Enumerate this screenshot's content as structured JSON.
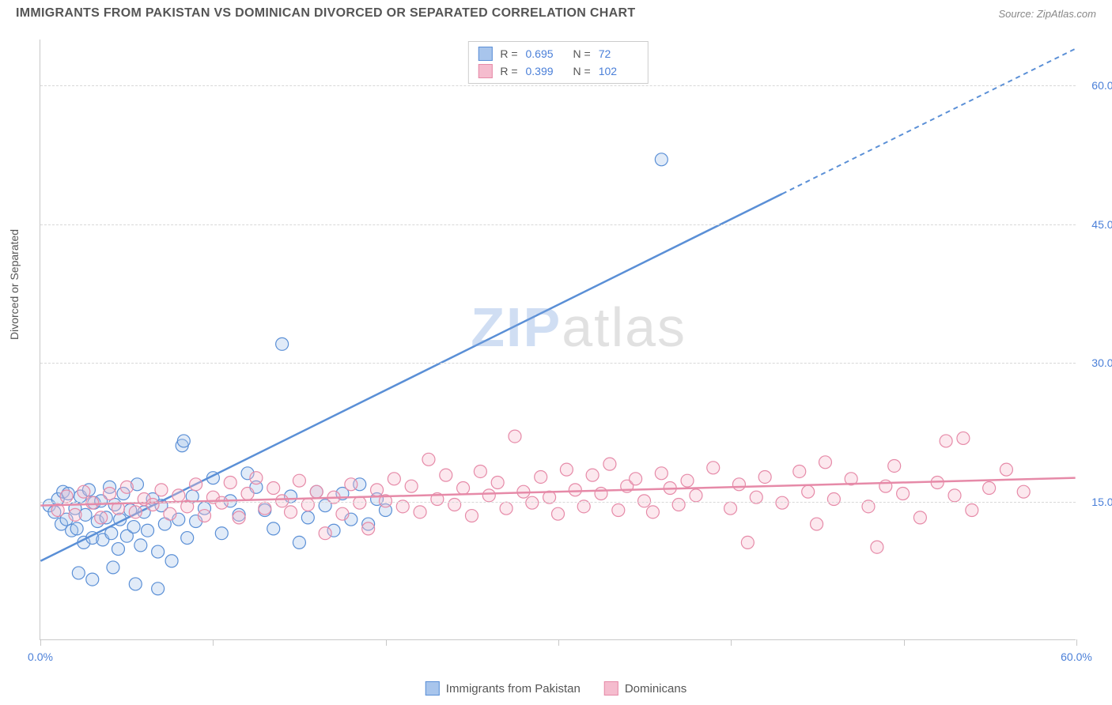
{
  "header": {
    "title": "IMMIGRANTS FROM PAKISTAN VS DOMINICAN DIVORCED OR SEPARATED CORRELATION CHART",
    "source_prefix": "Source: ",
    "source_name": "ZipAtlas.com"
  },
  "watermark": {
    "zip": "ZIP",
    "atlas": "atlas"
  },
  "chart": {
    "type": "scatter",
    "y_axis_label": "Divorced or Separated",
    "xlim": [
      0,
      60
    ],
    "ylim": [
      0,
      65
    ],
    "x_ticks": [
      0,
      10,
      20,
      30,
      40,
      50,
      60
    ],
    "x_tick_labels": {
      "0": "0.0%",
      "60": "60.0%"
    },
    "y_ticks": [
      15,
      30,
      45,
      60
    ],
    "y_tick_labels": {
      "15": "15.0%",
      "30": "30.0%",
      "45": "45.0%",
      "60": "60.0%"
    },
    "background_color": "#ffffff",
    "grid_color": "#d8d8d8",
    "marker_radius": 8,
    "marker_fill_opacity": 0.35,
    "marker_stroke_width": 1.2,
    "series": [
      {
        "name": "Immigrants from Pakistan",
        "stroke": "#5a8fd6",
        "fill": "#a8c5ec",
        "R_label": "R =",
        "R": "0.695",
        "N_label": "N =",
        "N": "72",
        "trend": {
          "x1": 0,
          "y1": 8.5,
          "x2": 60,
          "y2": 64,
          "solid_until_x": 43
        },
        "points": [
          [
            0.5,
            14.5
          ],
          [
            0.8,
            13.8
          ],
          [
            1.0,
            15.2
          ],
          [
            1.2,
            12.5
          ],
          [
            1.3,
            16.0
          ],
          [
            1.5,
            13.0
          ],
          [
            1.6,
            15.8
          ],
          [
            1.8,
            11.8
          ],
          [
            2.0,
            14.2
          ],
          [
            2.1,
            12.0
          ],
          [
            2.3,
            15.5
          ],
          [
            2.5,
            10.5
          ],
          [
            2.6,
            13.5
          ],
          [
            2.8,
            16.2
          ],
          [
            3.0,
            11.0
          ],
          [
            3.1,
            14.8
          ],
          [
            3.3,
            12.8
          ],
          [
            3.5,
            15.0
          ],
          [
            3.6,
            10.8
          ],
          [
            3.8,
            13.2
          ],
          [
            4.0,
            16.5
          ],
          [
            4.1,
            11.5
          ],
          [
            4.3,
            14.6
          ],
          [
            4.5,
            9.8
          ],
          [
            4.6,
            13.0
          ],
          [
            4.8,
            15.8
          ],
          [
            5.0,
            11.2
          ],
          [
            5.2,
            14.0
          ],
          [
            5.4,
            12.2
          ],
          [
            5.6,
            16.8
          ],
          [
            5.8,
            10.2
          ],
          [
            6.0,
            13.8
          ],
          [
            6.2,
            11.8
          ],
          [
            6.5,
            15.2
          ],
          [
            6.8,
            9.5
          ],
          [
            7.0,
            14.5
          ],
          [
            7.2,
            12.5
          ],
          [
            7.6,
            8.5
          ],
          [
            8.0,
            13.0
          ],
          [
            8.2,
            21.0
          ],
          [
            8.3,
            21.5
          ],
          [
            8.5,
            11.0
          ],
          [
            8.8,
            15.5
          ],
          [
            9.0,
            12.8
          ],
          [
            9.5,
            14.2
          ],
          [
            10.0,
            17.5
          ],
          [
            10.5,
            11.5
          ],
          [
            11.0,
            15.0
          ],
          [
            11.5,
            13.5
          ],
          [
            12.0,
            18.0
          ],
          [
            12.5,
            16.5
          ],
          [
            13.0,
            14.0
          ],
          [
            13.5,
            12.0
          ],
          [
            14.0,
            32.0
          ],
          [
            14.5,
            15.5
          ],
          [
            15.0,
            10.5
          ],
          [
            15.5,
            13.2
          ],
          [
            16.0,
            16.0
          ],
          [
            16.5,
            14.5
          ],
          [
            17.0,
            11.8
          ],
          [
            17.5,
            15.8
          ],
          [
            18.0,
            13.0
          ],
          [
            18.5,
            16.8
          ],
          [
            19.0,
            12.5
          ],
          [
            19.5,
            15.2
          ],
          [
            20.0,
            14.0
          ],
          [
            2.2,
            7.2
          ],
          [
            3.0,
            6.5
          ],
          [
            4.2,
            7.8
          ],
          [
            5.5,
            6.0
          ],
          [
            6.8,
            5.5
          ],
          [
            36.0,
            52.0
          ]
        ]
      },
      {
        "name": "Dominicans",
        "stroke": "#e68aa8",
        "fill": "#f5bcce",
        "R_label": "R =",
        "R": "0.399",
        "N_label": "N =",
        "N": "102",
        "trend": {
          "x1": 0,
          "y1": 14.5,
          "x2": 60,
          "y2": 17.5,
          "solid_until_x": 60
        },
        "points": [
          [
            1.0,
            14.0
          ],
          [
            1.5,
            15.5
          ],
          [
            2.0,
            13.5
          ],
          [
            2.5,
            16.0
          ],
          [
            3.0,
            14.8
          ],
          [
            3.5,
            13.2
          ],
          [
            4.0,
            15.8
          ],
          [
            4.5,
            14.2
          ],
          [
            5.0,
            16.5
          ],
          [
            5.5,
            13.8
          ],
          [
            6.0,
            15.2
          ],
          [
            6.5,
            14.6
          ],
          [
            7.0,
            16.2
          ],
          [
            7.5,
            13.6
          ],
          [
            8.0,
            15.6
          ],
          [
            8.5,
            14.4
          ],
          [
            9.0,
            16.8
          ],
          [
            9.5,
            13.4
          ],
          [
            10.0,
            15.4
          ],
          [
            10.5,
            14.8
          ],
          [
            11.0,
            17.0
          ],
          [
            11.5,
            13.2
          ],
          [
            12.0,
            15.8
          ],
          [
            12.5,
            17.5
          ],
          [
            13.0,
            14.2
          ],
          [
            13.5,
            16.4
          ],
          [
            14.0,
            15.0
          ],
          [
            14.5,
            13.8
          ],
          [
            15.0,
            17.2
          ],
          [
            15.5,
            14.6
          ],
          [
            16.0,
            16.0
          ],
          [
            16.5,
            11.5
          ],
          [
            17.0,
            15.4
          ],
          [
            17.5,
            13.6
          ],
          [
            18.0,
            16.8
          ],
          [
            18.5,
            14.8
          ],
          [
            19.0,
            12.0
          ],
          [
            19.5,
            16.2
          ],
          [
            20.0,
            15.0
          ],
          [
            20.5,
            17.4
          ],
          [
            21.0,
            14.4
          ],
          [
            21.5,
            16.6
          ],
          [
            22.0,
            13.8
          ],
          [
            22.5,
            19.5
          ],
          [
            23.0,
            15.2
          ],
          [
            23.5,
            17.8
          ],
          [
            24.0,
            14.6
          ],
          [
            24.5,
            16.4
          ],
          [
            25.0,
            13.4
          ],
          [
            25.5,
            18.2
          ],
          [
            26.0,
            15.6
          ],
          [
            26.5,
            17.0
          ],
          [
            27.0,
            14.2
          ],
          [
            27.5,
            22.0
          ],
          [
            28.0,
            16.0
          ],
          [
            28.5,
            14.8
          ],
          [
            29.0,
            17.6
          ],
          [
            29.5,
            15.4
          ],
          [
            30.0,
            13.6
          ],
          [
            30.5,
            18.4
          ],
          [
            31.0,
            16.2
          ],
          [
            31.5,
            14.4
          ],
          [
            32.0,
            17.8
          ],
          [
            32.5,
            15.8
          ],
          [
            33.0,
            19.0
          ],
          [
            33.5,
            14.0
          ],
          [
            34.0,
            16.6
          ],
          [
            34.5,
            17.4
          ],
          [
            35.0,
            15.0
          ],
          [
            35.5,
            13.8
          ],
          [
            36.0,
            18.0
          ],
          [
            36.5,
            16.4
          ],
          [
            37.0,
            14.6
          ],
          [
            37.5,
            17.2
          ],
          [
            38.0,
            15.6
          ],
          [
            39.0,
            18.6
          ],
          [
            40.0,
            14.2
          ],
          [
            40.5,
            16.8
          ],
          [
            41.0,
            10.5
          ],
          [
            41.5,
            15.4
          ],
          [
            42.0,
            17.6
          ],
          [
            43.0,
            14.8
          ],
          [
            44.0,
            18.2
          ],
          [
            44.5,
            16.0
          ],
          [
            45.0,
            12.5
          ],
          [
            45.5,
            19.2
          ],
          [
            46.0,
            15.2
          ],
          [
            47.0,
            17.4
          ],
          [
            48.0,
            14.4
          ],
          [
            48.5,
            10.0
          ],
          [
            49.0,
            16.6
          ],
          [
            49.5,
            18.8
          ],
          [
            50.0,
            15.8
          ],
          [
            51.0,
            13.2
          ],
          [
            52.0,
            17.0
          ],
          [
            52.5,
            21.5
          ],
          [
            53.0,
            15.6
          ],
          [
            53.5,
            21.8
          ],
          [
            54.0,
            14.0
          ],
          [
            55.0,
            16.4
          ],
          [
            56.0,
            18.4
          ],
          [
            57.0,
            16.0
          ]
        ]
      }
    ],
    "bottom_legend": [
      {
        "label": "Immigrants from Pakistan",
        "stroke": "#5a8fd6",
        "fill": "#a8c5ec"
      },
      {
        "label": "Dominicans",
        "stroke": "#e68aa8",
        "fill": "#f5bcce"
      }
    ]
  }
}
